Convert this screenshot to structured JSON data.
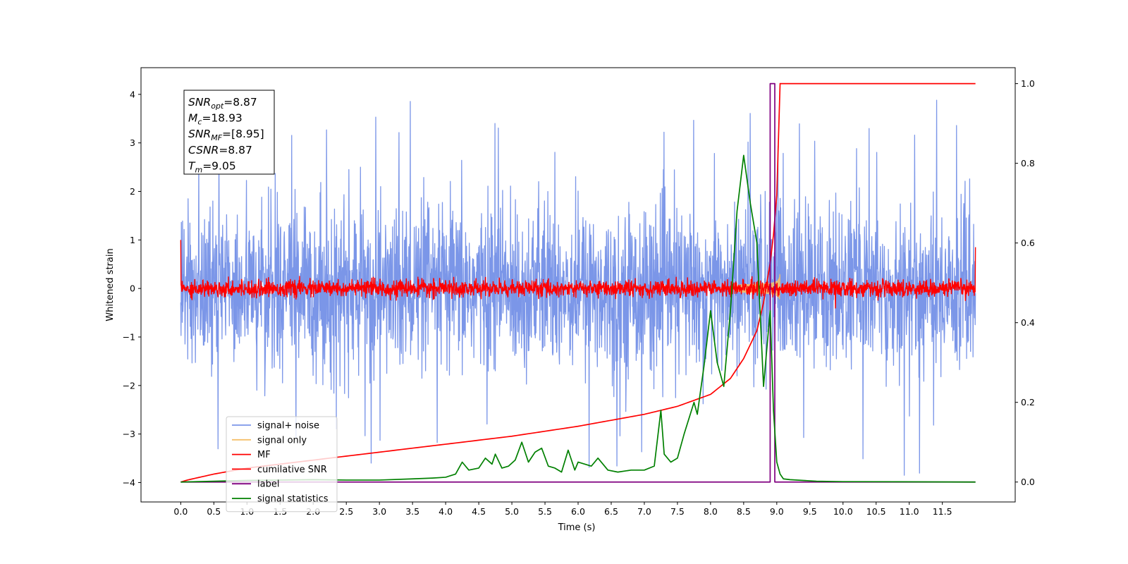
{
  "chart_data": {
    "type": "line",
    "xlabel": "Time (s)",
    "ylabel": "Whitened strain",
    "xlim": [
      -0.6,
      12.6
    ],
    "ylim_left": [
      -4.4,
      4.55
    ],
    "ylim_right": [
      -0.05,
      1.04
    ],
    "x_ticks": [
      "0.0",
      "0.5",
      "1.0",
      "1.5",
      "2.0",
      "2.5",
      "3.0",
      "3.5",
      "4.0",
      "4.5",
      "5.0",
      "5.5",
      "6.0",
      "6.5",
      "7.0",
      "7.5",
      "8.0",
      "8.5",
      "9.0",
      "9.5",
      "10.0",
      "10.5",
      "11.0",
      "11.5"
    ],
    "y_ticks_left": [
      "−4",
      "−3",
      "−2",
      "−1",
      "0",
      "1",
      "2",
      "3",
      "4"
    ],
    "y_ticks_right": [
      "0.0",
      "0.2",
      "0.4",
      "0.6",
      "0.8",
      "1.0"
    ],
    "legend_position": "lower-left",
    "annotation": {
      "lines": [
        {
          "main": "SNR",
          "sub": "opt",
          "value": "=8.87"
        },
        {
          "main": "M",
          "sub": "c",
          "value": "=18.93"
        },
        {
          "main": "SNR",
          "sub": "MF",
          "value": "=[8.95]"
        },
        {
          "main": "CSNR",
          "sub": "",
          "value": "=8.87"
        },
        {
          "main": "T",
          "sub": "m",
          "value": "=9.05"
        }
      ]
    },
    "series": [
      {
        "name": "signal+ noise",
        "axis": "left",
        "color": "#7b96e8",
        "kind": "noise_band",
        "x_range": [
          0.0,
          12.0
        ],
        "typical_range": [
          -1.9,
          2.0
        ],
        "peak_max": 4.2,
        "peak_min": -3.85
      },
      {
        "name": "signal only",
        "axis": "left",
        "color": "#f5c06a",
        "kind": "chirp",
        "x_range": [
          8.3,
          9.05
        ],
        "peak_amplitude": 0.5
      },
      {
        "name": "MF",
        "axis": "left",
        "color": "#ff0000",
        "kind": "noise_band",
        "x_range": [
          0.0,
          12.0
        ],
        "typical_range": [
          -0.18,
          0.18
        ],
        "edge_values": [
          1.0,
          0.85
        ]
      },
      {
        "name": "cumilative SNR",
        "axis": "right",
        "color": "#ff0000",
        "x": [
          0.0,
          0.1,
          0.5,
          1.0,
          2.0,
          3.0,
          4.0,
          5.0,
          6.0,
          6.5,
          7.0,
          7.5,
          8.0,
          8.3,
          8.5,
          8.7,
          8.8,
          8.9,
          8.95,
          9.0,
          9.05,
          9.1,
          12.0
        ],
        "values": [
          0.0,
          0.005,
          0.02,
          0.035,
          0.055,
          0.075,
          0.095,
          0.115,
          0.14,
          0.155,
          0.17,
          0.19,
          0.22,
          0.26,
          0.31,
          0.38,
          0.45,
          0.55,
          0.62,
          0.72,
          1.0,
          1.0,
          1.0
        ]
      },
      {
        "name": "label",
        "axis": "right",
        "color": "#800080",
        "x": [
          0.0,
          8.9,
          8.9,
          8.97,
          8.97,
          9.05,
          12.0
        ],
        "values": [
          0.0,
          0.0,
          1.0,
          1.0,
          0.0,
          0.0,
          0.0
        ]
      },
      {
        "name": "signal statistics",
        "axis": "right",
        "color": "#008000",
        "x": [
          0.0,
          0.5,
          1.0,
          1.5,
          2.0,
          2.5,
          3.0,
          3.5,
          3.8,
          4.0,
          4.15,
          4.25,
          4.35,
          4.5,
          4.6,
          4.7,
          4.75,
          4.85,
          4.95,
          5.05,
          5.15,
          5.25,
          5.35,
          5.45,
          5.55,
          5.65,
          5.75,
          5.85,
          5.95,
          6.0,
          6.1,
          6.2,
          6.3,
          6.45,
          6.6,
          6.8,
          7.0,
          7.15,
          7.25,
          7.3,
          7.4,
          7.5,
          7.6,
          7.75,
          7.8,
          7.9,
          8.0,
          8.1,
          8.2,
          8.3,
          8.4,
          8.5,
          8.6,
          8.7,
          8.8,
          8.9,
          8.95,
          9.0,
          9.05,
          9.1,
          9.2,
          9.4,
          9.6,
          10.0,
          12.0
        ],
        "values": [
          0.0,
          0.002,
          0.004,
          0.005,
          0.006,
          0.005,
          0.005,
          0.008,
          0.01,
          0.012,
          0.02,
          0.05,
          0.03,
          0.035,
          0.06,
          0.045,
          0.07,
          0.035,
          0.04,
          0.055,
          0.1,
          0.05,
          0.075,
          0.085,
          0.04,
          0.035,
          0.025,
          0.08,
          0.03,
          0.05,
          0.045,
          0.04,
          0.06,
          0.03,
          0.025,
          0.03,
          0.03,
          0.04,
          0.18,
          0.07,
          0.05,
          0.06,
          0.12,
          0.2,
          0.17,
          0.29,
          0.43,
          0.3,
          0.24,
          0.43,
          0.68,
          0.82,
          0.7,
          0.6,
          0.24,
          0.43,
          0.18,
          0.05,
          0.02,
          0.008,
          0.006,
          0.004,
          0.002,
          0.001,
          0.0
        ]
      }
    ]
  }
}
